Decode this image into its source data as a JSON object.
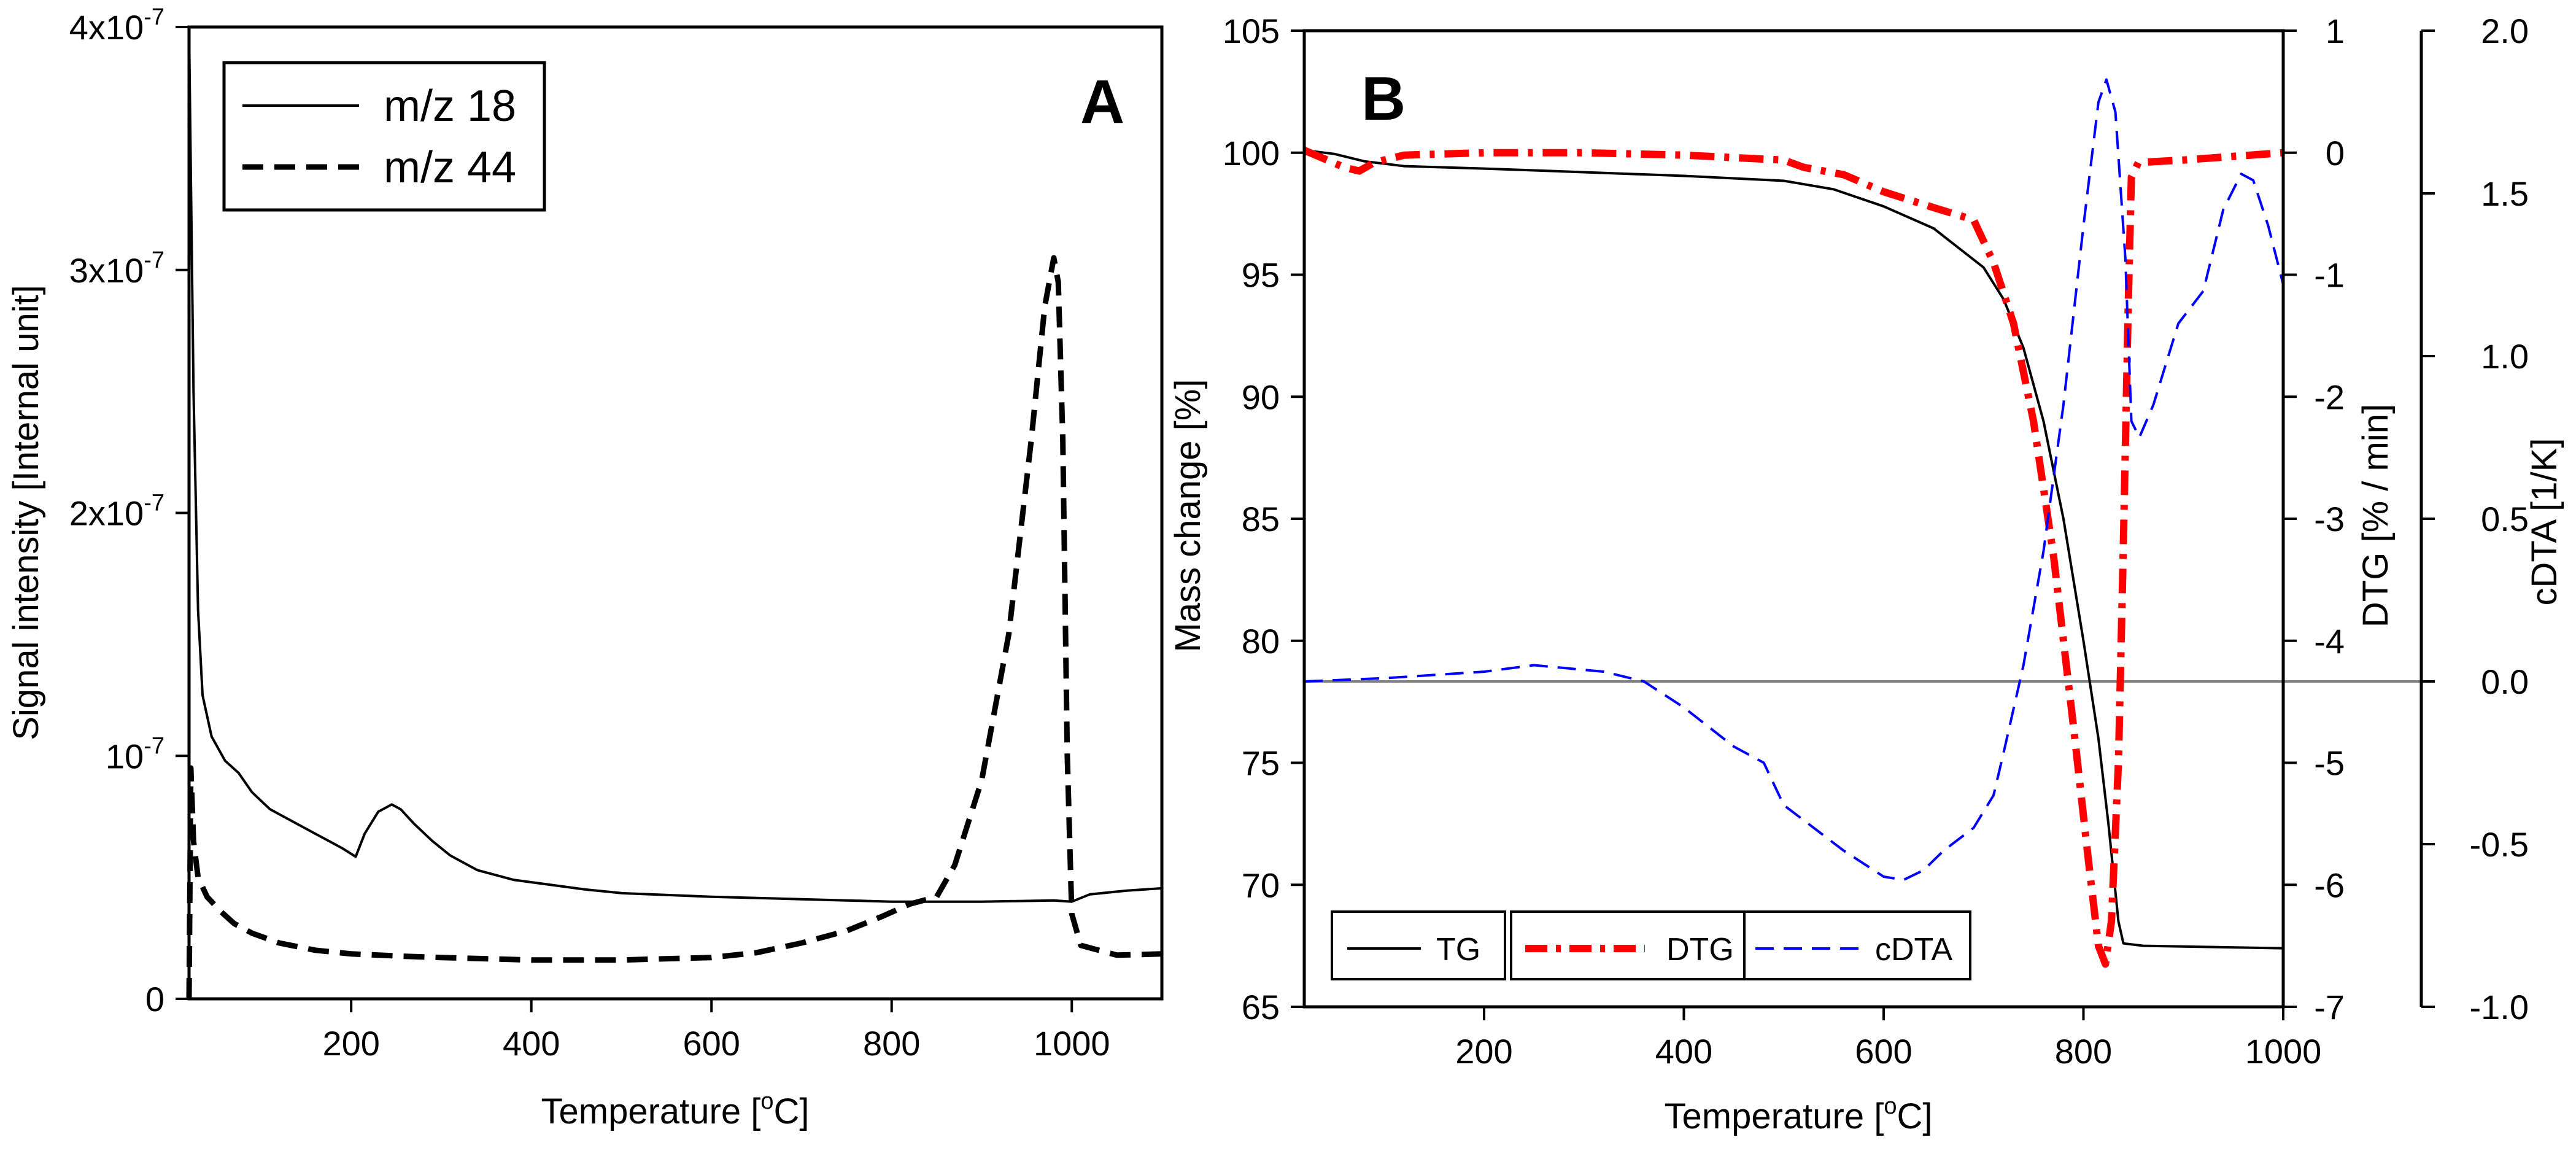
{
  "chart_data": [
    {
      "panel": "A",
      "type": "line",
      "xlabel": "Temperature [",
      "xlabel_sup": "o",
      "xlabel_end": "C]",
      "ylabel": "Signal intensity [Internal unit]",
      "xlim": [
        20,
        1100
      ],
      "ylim": [
        0,
        4e-07
      ],
      "xticks": [
        200,
        400,
        600,
        800,
        1000
      ],
      "yticks": [
        {
          "value": 0,
          "mant": "0",
          "exp": ""
        },
        {
          "value": 1e-07,
          "mant": "10",
          "exp": "-7"
        },
        {
          "value": 2e-07,
          "mant": "2x10",
          "exp": "-7"
        },
        {
          "value": 3e-07,
          "mant": "3x10",
          "exp": "-7"
        },
        {
          "value": 4e-07,
          "mant": "4x10",
          "exp": "-7"
        }
      ],
      "legend_position": "top-left",
      "series": [
        {
          "name": "m/z 18",
          "color": "#000000",
          "style": "solid",
          "points": [
            [
              20,
              4e-07
            ],
            [
              22,
              3.4e-07
            ],
            [
              25,
              2.5e-07
            ],
            [
              30,
              1.6e-07
            ],
            [
              35,
              1.25e-07
            ],
            [
              45,
              1.08e-07
            ],
            [
              60,
              9.8e-08
            ],
            [
              75,
              9.3e-08
            ],
            [
              90,
              8.5e-08
            ],
            [
              110,
              7.8e-08
            ],
            [
              130,
              7.4e-08
            ],
            [
              150,
              7e-08
            ],
            [
              170,
              6.6e-08
            ],
            [
              190,
              6.2e-08
            ],
            [
              205,
              5.85e-08
            ],
            [
              215,
              6.8e-08
            ],
            [
              230,
              7.7e-08
            ],
            [
              245,
              8e-08
            ],
            [
              255,
              7.8e-08
            ],
            [
              270,
              7.2e-08
            ],
            [
              290,
              6.5e-08
            ],
            [
              310,
              5.9e-08
            ],
            [
              340,
              5.3e-08
            ],
            [
              380,
              4.9e-08
            ],
            [
              420,
              4.7e-08
            ],
            [
              460,
              4.5e-08
            ],
            [
              500,
              4.35e-08
            ],
            [
              600,
              4.2e-08
            ],
            [
              700,
              4.1e-08
            ],
            [
              800,
              4e-08
            ],
            [
              900,
              4e-08
            ],
            [
              980,
              4.05e-08
            ],
            [
              1000,
              4e-08
            ],
            [
              1020,
              4.3e-08
            ],
            [
              1060,
              4.45e-08
            ],
            [
              1100,
              4.55e-08
            ]
          ]
        },
        {
          "name": "m/z 44",
          "color": "#000000",
          "style": "dashed",
          "points": [
            [
              20,
              0
            ],
            [
              22,
              9.5e-08
            ],
            [
              25,
              6.5e-08
            ],
            [
              30,
              5e-08
            ],
            [
              40,
              4.2e-08
            ],
            [
              55,
              3.6e-08
            ],
            [
              70,
              3.1e-08
            ],
            [
              90,
              2.7e-08
            ],
            [
              120,
              2.3e-08
            ],
            [
              160,
              2e-08
            ],
            [
              200,
              1.85e-08
            ],
            [
              260,
              1.75e-08
            ],
            [
              300,
              1.7e-08
            ],
            [
              400,
              1.6e-08
            ],
            [
              500,
              1.6e-08
            ],
            [
              600,
              1.7e-08
            ],
            [
              650,
              1.9e-08
            ],
            [
              700,
              2.3e-08
            ],
            [
              750,
              2.8e-08
            ],
            [
              790,
              3.4e-08
            ],
            [
              820,
              3.9e-08
            ],
            [
              850,
              4.2e-08
            ],
            [
              870,
              5.5e-08
            ],
            [
              900,
              9e-08
            ],
            [
              930,
              1.5e-07
            ],
            [
              955,
              2.3e-07
            ],
            [
              970,
              2.85e-07
            ],
            [
              980,
              3.05e-07
            ],
            [
              985,
              2.95e-07
            ],
            [
              990,
              2.3e-07
            ],
            [
              995,
              1e-07
            ],
            [
              1000,
              3.5e-08
            ],
            [
              1010,
              2.2e-08
            ],
            [
              1050,
              1.8e-08
            ],
            [
              1100,
              1.85e-08
            ]
          ]
        }
      ]
    },
    {
      "panel": "B",
      "type": "line",
      "xlabel": "Temperature [",
      "xlabel_sup": "o",
      "xlabel_end": "C]",
      "ylabel": "Mass change [%]",
      "y2label": "DTG [% / min]",
      "y3label": "cDTA [1/K]",
      "xlim": [
        20,
        1000
      ],
      "ylim": [
        65,
        105
      ],
      "y2lim": [
        -7,
        1
      ],
      "y3lim": [
        -1.0,
        2.0
      ],
      "xticks": [
        200,
        400,
        600,
        800,
        1000
      ],
      "yticks": [
        "65",
        "70",
        "75",
        "80",
        "85",
        "90",
        "95",
        "100",
        "105"
      ],
      "y2ticks": [
        "-7",
        "-6",
        "-5",
        "-4",
        "-3",
        "-2",
        "-1",
        "0",
        "1"
      ],
      "y3ticks": [
        "-1.0",
        "-0.5",
        "0.0",
        "0.5",
        "1.0",
        "1.5",
        "2.0"
      ],
      "legend_position": "bottom-left",
      "series": [
        {
          "name": "TG",
          "axis": "y",
          "color": "#000000",
          "style": "solid",
          "points": [
            [
              20,
              100.1
            ],
            [
              50,
              99.95
            ],
            [
              80,
              99.65
            ],
            [
              120,
              99.45
            ],
            [
              200,
              99.35
            ],
            [
              300,
              99.2
            ],
            [
              400,
              99.05
            ],
            [
              500,
              98.85
            ],
            [
              550,
              98.5
            ],
            [
              600,
              97.8
            ],
            [
              650,
              96.9
            ],
            [
              700,
              95.3
            ],
            [
              720,
              94.0
            ],
            [
              740,
              92.0
            ],
            [
              760,
              89.0
            ],
            [
              780,
              85.0
            ],
            [
              800,
              80.0
            ],
            [
              815,
              76.0
            ],
            [
              825,
              72.5
            ],
            [
              835,
              68.5
            ],
            [
              840,
              67.6
            ],
            [
              860,
              67.5
            ],
            [
              1000,
              67.4
            ]
          ]
        },
        {
          "name": "DTG",
          "axis": "y2",
          "color": "#ff0000",
          "style": "dashdot",
          "points": [
            [
              20,
              0.02
            ],
            [
              40,
              -0.05
            ],
            [
              60,
              -0.12
            ],
            [
              75,
              -0.15
            ],
            [
              90,
              -0.08
            ],
            [
              120,
              -0.02
            ],
            [
              200,
              0.0
            ],
            [
              300,
              0.0
            ],
            [
              400,
              -0.02
            ],
            [
              500,
              -0.06
            ],
            [
              520,
              -0.12
            ],
            [
              560,
              -0.18
            ],
            [
              600,
              -0.32
            ],
            [
              650,
              -0.45
            ],
            [
              690,
              -0.55
            ],
            [
              710,
              -0.9
            ],
            [
              730,
              -1.4
            ],
            [
              750,
              -2.2
            ],
            [
              770,
              -3.3
            ],
            [
              790,
              -4.7
            ],
            [
              805,
              -5.8
            ],
            [
              815,
              -6.5
            ],
            [
              822,
              -6.65
            ],
            [
              828,
              -6.3
            ],
            [
              835,
              -5.0
            ],
            [
              840,
              -3.2
            ],
            [
              845,
              -1.2
            ],
            [
              848,
              -0.2
            ],
            [
              855,
              -0.08
            ],
            [
              900,
              -0.06
            ],
            [
              1000,
              0.0
            ]
          ]
        },
        {
          "name": "cDTA",
          "axis": "y3",
          "color": "#0000ff",
          "style": "dashed",
          "points": [
            [
              20,
              0.0
            ],
            [
              100,
              0.01
            ],
            [
              200,
              0.03
            ],
            [
              250,
              0.05
            ],
            [
              320,
              0.03
            ],
            [
              360,
              0.0
            ],
            [
              400,
              -0.08
            ],
            [
              450,
              -0.2
            ],
            [
              480,
              -0.25
            ],
            [
              500,
              -0.38
            ],
            [
              530,
              -0.45
            ],
            [
              560,
              -0.52
            ],
            [
              600,
              -0.6
            ],
            [
              620,
              -0.61
            ],
            [
              640,
              -0.58
            ],
            [
              660,
              -0.52
            ],
            [
              690,
              -0.45
            ],
            [
              710,
              -0.35
            ],
            [
              720,
              -0.22
            ],
            [
              740,
              0.05
            ],
            [
              760,
              0.4
            ],
            [
              780,
              0.85
            ],
            [
              800,
              1.4
            ],
            [
              815,
              1.78
            ],
            [
              823,
              1.85
            ],
            [
              832,
              1.75
            ],
            [
              842,
              1.3
            ],
            [
              848,
              0.8
            ],
            [
              856,
              0.75
            ],
            [
              870,
              0.85
            ],
            [
              895,
              1.1
            ],
            [
              920,
              1.2
            ],
            [
              940,
              1.45
            ],
            [
              958,
              1.56
            ],
            [
              970,
              1.54
            ],
            [
              985,
              1.4
            ],
            [
              1000,
              1.22
            ]
          ]
        }
      ],
      "hline": {
        "axis": "y3",
        "value": 0.0,
        "color": "#808080"
      }
    }
  ]
}
